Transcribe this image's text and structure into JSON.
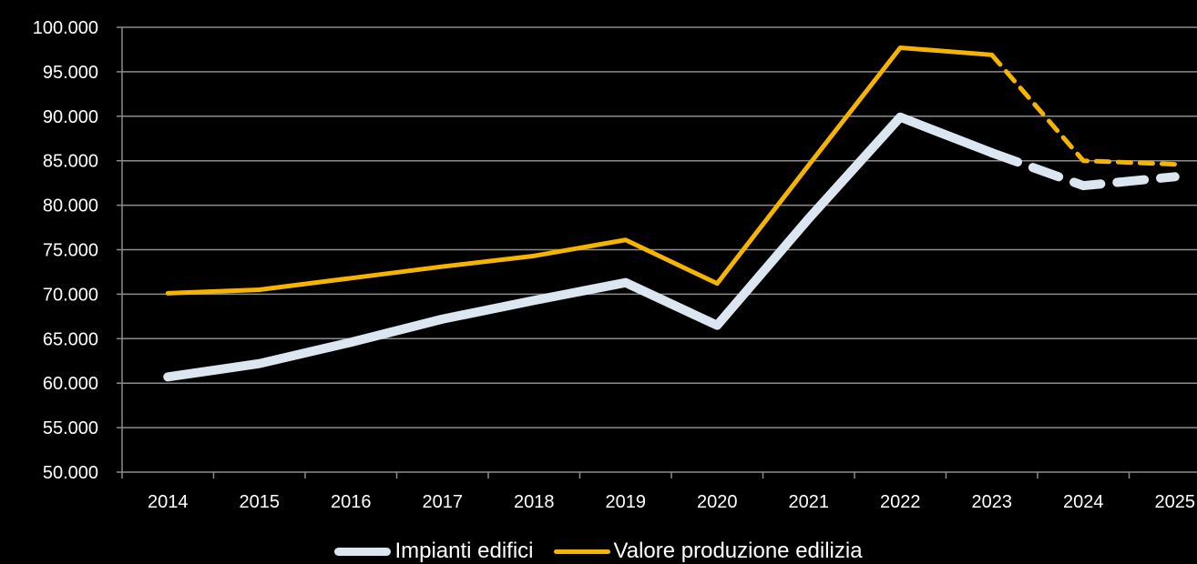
{
  "chart_data": {
    "type": "line",
    "title": "",
    "xlabel": "",
    "ylabel": "",
    "categories": [
      "2014",
      "2015",
      "2016",
      "2017",
      "2018",
      "2019",
      "2020",
      "2021",
      "2022",
      "2023",
      "2024",
      "2025"
    ],
    "ylim": [
      50000,
      100000
    ],
    "yticks": [
      "50.000",
      "55.000",
      "60.000",
      "65.000",
      "70.000",
      "75.000",
      "80.000",
      "85.000",
      "90.000",
      "95.000",
      "100.000"
    ],
    "grid": true,
    "legend_position": "bottom",
    "forecast_from_index": 9,
    "series": [
      {
        "name": "Impianti edifici",
        "color": "#dce6f1",
        "values": [
          60700,
          62200,
          64600,
          67200,
          69300,
          71300,
          66500,
          78500,
          89900,
          85900,
          82200,
          83200
        ]
      },
      {
        "name": "Valore produzione edilizia",
        "color": "#f4b400",
        "values": [
          70100,
          70500,
          71800,
          73100,
          74300,
          76100,
          71200,
          84500,
          97700,
          96900,
          85000,
          84600
        ]
      }
    ]
  }
}
